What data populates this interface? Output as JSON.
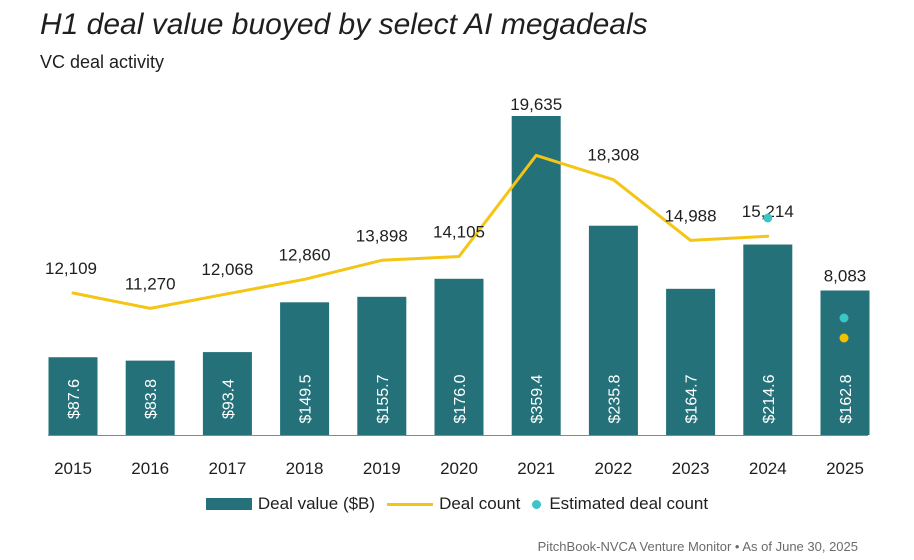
{
  "title": "H1 deal value buoyed by select AI megadeals",
  "subtitle": "VC deal activity",
  "source": "PitchBook-NVCA Venture Monitor • As of June 30, 2025",
  "legend": {
    "bar_label": "Deal value ($B)",
    "line_label": "Deal count",
    "dot_label": "Estimated deal count"
  },
  "colors": {
    "bar": "#24717a",
    "line": "#f4c514",
    "estimate_teal": "#3cc4c6",
    "estimate_yellow": "#f2c200",
    "axis": "#888888"
  },
  "chart_data": {
    "type": "bar",
    "categories": [
      "2015",
      "2016",
      "2017",
      "2018",
      "2019",
      "2020",
      "2021",
      "2022",
      "2023",
      "2024",
      "2025"
    ],
    "series": [
      {
        "name": "Deal value ($B)",
        "type": "bar",
        "values": [
          87.6,
          83.8,
          93.4,
          149.5,
          155.7,
          176.0,
          359.4,
          235.8,
          164.7,
          214.6,
          162.8
        ],
        "labels": [
          "$87.6",
          "$83.8",
          "$93.4",
          "$149.5",
          "$155.7",
          "$176.0",
          "$359.4",
          "$235.8",
          "$164.7",
          "$214.6",
          "$162.8"
        ]
      },
      {
        "name": "Deal count",
        "type": "line",
        "values": [
          12109,
          11270,
          12068,
          12860,
          13898,
          14105,
          19635,
          18308,
          14988,
          15214,
          8083
        ],
        "labels": [
          "12,109",
          "11,270",
          "12,068",
          "12,860",
          "13,898",
          "14,105",
          "19,635",
          "18,308",
          "14,988",
          "15,214",
          "8,083"
        ]
      },
      {
        "name": "Estimated deal count",
        "type": "scatter",
        "points": [
          {
            "category": "2024",
            "value": 15214,
            "color": "teal"
          },
          {
            "category": "2025",
            "value": 8083,
            "color": "teal"
          },
          {
            "category": "2025",
            "value": 8083,
            "color": "yellow"
          }
        ]
      }
    ],
    "axes": {
      "bar_value_range": [
        0,
        360
      ],
      "count_range": [
        0,
        20000
      ]
    },
    "grid": false,
    "legend_position": "bottom"
  }
}
